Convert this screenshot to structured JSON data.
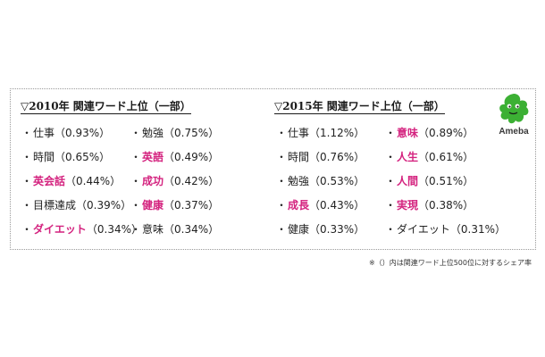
{
  "panel_2010": {
    "heading": "▽2010年 関連ワード上位（一部）",
    "left_items": [
      {
        "bullet": "・",
        "word": "仕事",
        "share": "（0.93%）",
        "highlight": false
      },
      {
        "bullet": "・",
        "word": "時間",
        "share": "（0.65%）",
        "highlight": false
      },
      {
        "bullet": "・",
        "word": "英会話",
        "share": "（0.44%）",
        "highlight": true
      },
      {
        "bullet": "・",
        "word": "目標達成",
        "share": "（0.39%）",
        "highlight": false
      },
      {
        "bullet": "・",
        "word": "ダイエット",
        "share": "（0.34%）",
        "highlight": true
      }
    ],
    "right_items": [
      {
        "bullet": "・",
        "word": "勉強",
        "share": "（0.75%）",
        "highlight": false
      },
      {
        "bullet": "・",
        "word": "英語",
        "share": "（0.49%）",
        "highlight": true
      },
      {
        "bullet": "・",
        "word": "成功",
        "share": "（0.42%）",
        "highlight": true
      },
      {
        "bullet": "・",
        "word": "健康",
        "share": "（0.37%）",
        "highlight": true
      },
      {
        "bullet": "・",
        "word": "意味",
        "share": "（0.34%）",
        "highlight": false
      }
    ]
  },
  "panel_2015": {
    "heading": "▽2015年 関連ワード上位（一部）",
    "left_items": [
      {
        "bullet": "・",
        "word": "仕事",
        "share": "（1.12%）",
        "highlight": false
      },
      {
        "bullet": "・",
        "word": "時間",
        "share": "（0.76%）",
        "highlight": false
      },
      {
        "bullet": "・",
        "word": "勉強",
        "share": "（0.53%）",
        "highlight": false
      },
      {
        "bullet": "・",
        "word": "成長",
        "share": "（0.43%）",
        "highlight": true
      },
      {
        "bullet": "・",
        "word": "健康",
        "share": "（0.33%）",
        "highlight": false
      }
    ],
    "right_items": [
      {
        "bullet": "・",
        "word": "意味",
        "share": "（0.89%）",
        "highlight": true
      },
      {
        "bullet": "・",
        "word": "人生",
        "share": "（0.61%）",
        "highlight": true
      },
      {
        "bullet": "・",
        "word": "人間",
        "share": "（0.51%）",
        "highlight": true
      },
      {
        "bullet": "・",
        "word": "実現",
        "share": "（0.38%）",
        "highlight": true
      },
      {
        "bullet": "・",
        "word": "ダイエット",
        "share": "（0.31%）",
        "highlight": false
      }
    ]
  },
  "logo": {
    "text": "Ameba",
    "icon": "ameba-mascot-icon",
    "color": "#3cb034"
  },
  "footnote": "※（）内は関連ワード上位500位に対するシェア率",
  "colors": {
    "highlight": "#d4237f",
    "text": "#222222",
    "border": "#9a9a9a"
  }
}
